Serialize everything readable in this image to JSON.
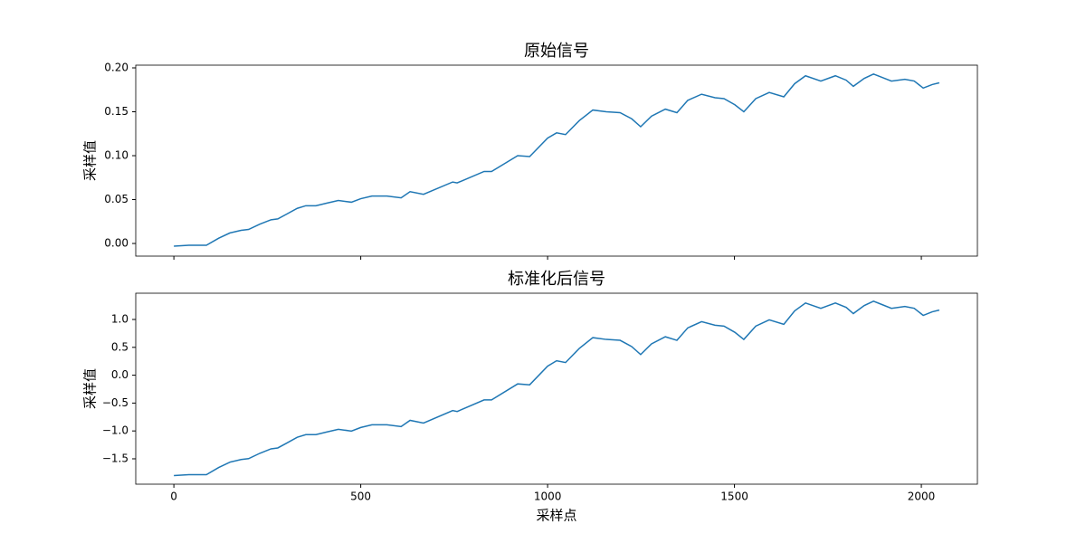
{
  "chart_data": [
    {
      "type": "line",
      "title": "原始信号",
      "ylabel": "采样值",
      "color": "#1f77b4",
      "x": [
        0,
        40,
        87,
        120,
        150,
        180,
        200,
        230,
        260,
        278,
        300,
        330,
        353,
        380,
        410,
        440,
        475,
        500,
        530,
        570,
        608,
        632,
        668,
        746,
        758,
        830,
        850,
        920,
        952,
        1000,
        1024,
        1048,
        1085,
        1121,
        1157,
        1194,
        1225,
        1249,
        1278,
        1315,
        1346,
        1375,
        1412,
        1448,
        1472,
        1501,
        1525,
        1557,
        1593,
        1632,
        1661,
        1690,
        1731,
        1770,
        1799,
        1818,
        1847,
        1872,
        1896,
        1920,
        1956,
        1981,
        2005,
        2029,
        2048
      ],
      "values": [
        -0.003,
        -0.002,
        -0.002,
        0.006,
        0.012,
        0.015,
        0.016,
        0.022,
        0.027,
        0.028,
        0.033,
        0.04,
        0.043,
        0.043,
        0.046,
        0.049,
        0.047,
        0.051,
        0.054,
        0.054,
        0.052,
        0.059,
        0.056,
        0.07,
        0.069,
        0.082,
        0.082,
        0.1,
        0.099,
        0.12,
        0.126,
        0.124,
        0.14,
        0.152,
        0.15,
        0.149,
        0.142,
        0.133,
        0.145,
        0.153,
        0.149,
        0.163,
        0.17,
        0.166,
        0.165,
        0.158,
        0.15,
        0.165,
        0.172,
        0.167,
        0.182,
        0.191,
        0.185,
        0.191,
        0.186,
        0.179,
        0.188,
        0.193,
        0.189,
        0.185,
        0.187,
        0.185,
        0.177,
        0.181,
        0.183
      ],
      "xlim": [
        -102,
        2150
      ],
      "xticks": [
        0,
        500,
        1000,
        1500,
        2000
      ],
      "xtick_labels": false,
      "ylim": [
        -0.0144,
        0.2031
      ],
      "yticks": [
        {
          "value": 0,
          "label": "0.00"
        },
        0.05,
        {
          "value": 0.1,
          "label": "0.10"
        },
        0.15,
        {
          "value": 0.2,
          "label": "0.20"
        }
      ]
    },
    {
      "type": "line",
      "title": "标准化后信号",
      "ylabel": "采样值",
      "xlabel": "采样点",
      "color": "#1f77b4",
      "x": [
        0,
        40,
        87,
        120,
        150,
        180,
        200,
        230,
        260,
        278,
        300,
        330,
        353,
        380,
        410,
        440,
        475,
        500,
        530,
        570,
        608,
        632,
        668,
        746,
        758,
        830,
        850,
        920,
        952,
        1000,
        1024,
        1048,
        1085,
        1121,
        1157,
        1194,
        1225,
        1249,
        1278,
        1315,
        1346,
        1375,
        1412,
        1448,
        1472,
        1501,
        1525,
        1557,
        1593,
        1632,
        1661,
        1690,
        1731,
        1770,
        1799,
        1818,
        1847,
        1872,
        1896,
        1920,
        1956,
        1981,
        2005,
        2029,
        2048
      ],
      "values": [
        -1.8,
        -1.784,
        -1.784,
        -1.656,
        -1.56,
        -1.513,
        -1.497,
        -1.401,
        -1.321,
        -1.305,
        -1.225,
        -1.114,
        -1.066,
        -1.066,
        -1.018,
        -0.97,
        -1.002,
        -0.938,
        -0.89,
        -0.89,
        -0.922,
        -0.81,
        -0.858,
        -0.635,
        -0.651,
        -0.443,
        -0.443,
        -0.156,
        -0.172,
        0.163,
        0.259,
        0.227,
        0.482,
        0.674,
        0.642,
        0.626,
        0.514,
        0.371,
        0.562,
        0.69,
        0.626,
        0.849,
        0.961,
        0.897,
        0.881,
        0.77,
        0.642,
        0.881,
        0.993,
        0.913,
        1.153,
        1.296,
        1.2,
        1.296,
        1.217,
        1.105,
        1.249,
        1.328,
        1.264,
        1.2,
        1.233,
        1.2,
        1.073,
        1.137,
        1.169
      ],
      "xlim": [
        -102,
        2150
      ],
      "xticks": [
        0,
        500,
        1000,
        1500,
        2000
      ],
      "xtick_labels": true,
      "ylim": [
        -1.955,
        1.471
      ],
      "yticks": [
        {
          "value": -1.5,
          "label": "−1.5"
        },
        {
          "value": -1,
          "label": "−1.0"
        },
        {
          "value": -0.5,
          "label": "−0.5"
        },
        {
          "value": 0,
          "label": "0.0"
        },
        0.5,
        {
          "value": 1,
          "label": "1.0"
        }
      ]
    }
  ]
}
